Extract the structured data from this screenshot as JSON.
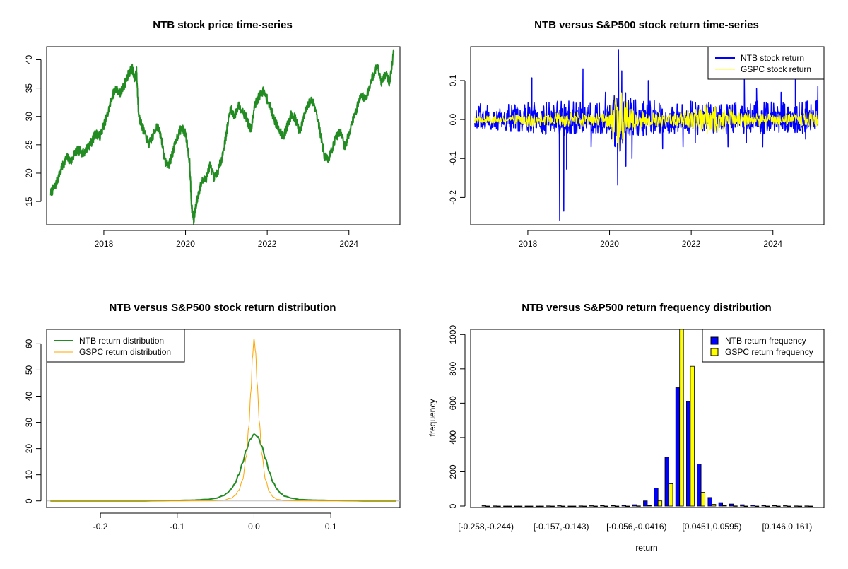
{
  "figure": {
    "colors": {
      "price_line": "#228B22",
      "ntb_return": "#0000FF",
      "gspc_return": "#FFFF00",
      "ntb_density": "#228B22",
      "gspc_density": "#FFA500",
      "ntb_bar": "#0000FF",
      "gspc_bar": "#FFFF00"
    }
  },
  "chart_data": [
    {
      "id": "price",
      "type": "line",
      "title": "NTB stock price time-series",
      "xlabel": "",
      "ylabel": "",
      "xlim": [
        2016.6,
        2025.25
      ],
      "ylim": [
        10.9,
        42.3
      ],
      "xticks": [
        2018,
        2020,
        2022,
        2024
      ],
      "yticks": [
        15,
        20,
        25,
        30,
        35,
        40
      ],
      "series": [
        {
          "name": "NTB stock price",
          "x": [
            2016.7,
            2016.8,
            2016.9,
            2017.0,
            2017.1,
            2017.2,
            2017.3,
            2017.4,
            2017.5,
            2017.6,
            2017.7,
            2017.8,
            2017.9,
            2018.0,
            2018.1,
            2018.2,
            2018.3,
            2018.4,
            2018.5,
            2018.6,
            2018.7,
            2018.75,
            2018.8,
            2018.85,
            2018.9,
            2019.0,
            2019.1,
            2019.2,
            2019.3,
            2019.4,
            2019.5,
            2019.6,
            2019.7,
            2019.8,
            2019.9,
            2020.0,
            2020.1,
            2020.15,
            2020.2,
            2020.25,
            2020.3,
            2020.4,
            2020.5,
            2020.6,
            2020.7,
            2020.8,
            2020.9,
            2021.0,
            2021.1,
            2021.2,
            2021.3,
            2021.4,
            2021.5,
            2021.6,
            2021.7,
            2021.8,
            2021.9,
            2022.0,
            2022.1,
            2022.2,
            2022.3,
            2022.4,
            2022.5,
            2022.6,
            2022.7,
            2022.8,
            2022.9,
            2023.0,
            2023.1,
            2023.2,
            2023.3,
            2023.4,
            2023.5,
            2023.6,
            2023.7,
            2023.8,
            2023.9,
            2024.0,
            2024.1,
            2024.2,
            2024.3,
            2024.4,
            2024.5,
            2024.6,
            2024.7,
            2024.8,
            2024.9,
            2025.0,
            2025.1
          ],
          "y": [
            16.5,
            17.5,
            19.5,
            21.5,
            22.8,
            22.0,
            23.8,
            24.0,
            23.5,
            24.5,
            25.5,
            27.0,
            26.5,
            28.5,
            30.5,
            33.5,
            35.0,
            34.0,
            35.5,
            37.5,
            38.5,
            36.5,
            38.0,
            30.5,
            29.0,
            27.0,
            25.0,
            26.5,
            28.5,
            26.5,
            22.0,
            21.5,
            24.0,
            26.5,
            28.0,
            27.0,
            22.0,
            14.0,
            11.8,
            14.0,
            16.0,
            18.5,
            19.0,
            21.5,
            19.0,
            20.5,
            23.0,
            27.0,
            31.5,
            30.0,
            32.0,
            31.0,
            29.5,
            27.5,
            32.0,
            33.5,
            34.5,
            33.0,
            31.0,
            29.0,
            27.5,
            26.5,
            28.5,
            30.5,
            29.5,
            27.0,
            30.0,
            32.0,
            33.0,
            31.0,
            27.0,
            23.0,
            22.5,
            24.5,
            26.5,
            27.5,
            24.5,
            27.0,
            29.5,
            31.5,
            34.0,
            33.0,
            35.0,
            37.5,
            39.0,
            36.0,
            37.5,
            36.0,
            41.5
          ]
        }
      ]
    },
    {
      "id": "returns",
      "type": "line",
      "title": "NTB versus S&P500 stock return time-series",
      "xlabel": "",
      "ylabel": "",
      "xlim": [
        2016.6,
        2025.25
      ],
      "ylim": [
        -0.27,
        0.187
      ],
      "xticks": [
        2018,
        2020,
        2022,
        2024
      ],
      "yticks": [
        -0.2,
        -0.1,
        0.0,
        0.1
      ],
      "ytick_labels": [
        "-0.2",
        "-0.1",
        "0.0",
        "0.1"
      ],
      "legend": [
        "NTB stock return",
        "GSPC stock return"
      ],
      "legend_position": "top-right",
      "series": [
        {
          "name": "NTB stock return",
          "band": [
            [
              2016.7,
              -0.035,
              0.04
            ],
            [
              2017.0,
              -0.03,
              0.045
            ],
            [
              2017.5,
              -0.03,
              0.04
            ],
            [
              2018.0,
              -0.035,
              0.045
            ],
            [
              2018.5,
              -0.04,
              0.045
            ],
            [
              2019.0,
              -0.04,
              0.05
            ],
            [
              2019.5,
              -0.035,
              0.045
            ],
            [
              2020.0,
              -0.04,
              0.05
            ],
            [
              2020.2,
              -0.09,
              0.1
            ],
            [
              2020.5,
              -0.05,
              0.055
            ],
            [
              2021.0,
              -0.04,
              0.05
            ],
            [
              2021.5,
              -0.035,
              0.045
            ],
            [
              2022.0,
              -0.04,
              0.05
            ],
            [
              2022.5,
              -0.035,
              0.045
            ],
            [
              2023.0,
              -0.04,
              0.05
            ],
            [
              2023.5,
              -0.04,
              0.05
            ],
            [
              2024.0,
              -0.035,
              0.045
            ],
            [
              2024.5,
              -0.035,
              0.045
            ],
            [
              2025.1,
              -0.04,
              0.05
            ]
          ],
          "spikes": [
            [
              2018.1,
              0.107
            ],
            [
              2018.78,
              -0.258
            ],
            [
              2018.88,
              -0.235
            ],
            [
              2018.95,
              -0.127
            ],
            [
              2019.35,
              0.13
            ],
            [
              2019.55,
              -0.07
            ],
            [
              2019.9,
              0.07
            ],
            [
              2020.2,
              -0.168
            ],
            [
              2020.22,
              0.178
            ],
            [
              2020.3,
              0.125
            ],
            [
              2020.4,
              -0.12
            ],
            [
              2020.55,
              -0.1
            ],
            [
              2020.95,
              0.1
            ],
            [
              2021.3,
              -0.075
            ],
            [
              2021.8,
              -0.07
            ],
            [
              2022.1,
              -0.06
            ],
            [
              2022.9,
              -0.07
            ],
            [
              2023.3,
              0.105
            ],
            [
              2023.35,
              -0.06
            ],
            [
              2023.6,
              0.08
            ],
            [
              2023.75,
              -0.07
            ],
            [
              2024.2,
              0.07
            ],
            [
              2024.55,
              0.11
            ],
            [
              2024.8,
              -0.05
            ],
            [
              2025.1,
              0.085
            ]
          ]
        },
        {
          "name": "GSPC stock return",
          "band": [
            [
              2016.7,
              -0.01,
              0.01
            ],
            [
              2017.5,
              -0.008,
              0.008
            ],
            [
              2018.0,
              -0.02,
              0.02
            ],
            [
              2018.5,
              -0.015,
              0.015
            ],
            [
              2019.0,
              -0.02,
              0.02
            ],
            [
              2019.5,
              -0.015,
              0.015
            ],
            [
              2020.0,
              -0.02,
              0.02
            ],
            [
              2020.2,
              -0.12,
              0.09
            ],
            [
              2020.5,
              -0.03,
              0.03
            ],
            [
              2021.0,
              -0.02,
              0.02
            ],
            [
              2021.5,
              -0.015,
              0.015
            ],
            [
              2022.0,
              -0.03,
              0.03
            ],
            [
              2022.4,
              -0.04,
              0.04
            ],
            [
              2022.8,
              -0.03,
              0.03
            ],
            [
              2023.3,
              -0.02,
              0.02
            ],
            [
              2023.8,
              -0.015,
              0.015
            ],
            [
              2024.4,
              -0.015,
              0.015
            ],
            [
              2025.1,
              -0.02,
              0.02
            ]
          ]
        }
      ]
    },
    {
      "id": "density",
      "type": "line",
      "title": "NTB versus S&P500 stock return distribution",
      "xlabel": "",
      "ylabel": "",
      "xlim": [
        -0.27,
        0.19
      ],
      "ylim": [
        -2.5,
        65.5
      ],
      "xticks": [
        -0.2,
        -0.1,
        0.0,
        0.1
      ],
      "xtick_labels": [
        "-0.2",
        "-0.1",
        "0.0",
        "0.1"
      ],
      "yticks": [
        0,
        10,
        20,
        30,
        40,
        50,
        60
      ],
      "legend": [
        "NTB return distribution",
        "GSPC return distribution"
      ],
      "legend_position": "top-left",
      "series": [
        {
          "name": "NTB return distribution",
          "x": [
            -0.265,
            -0.2,
            -0.15,
            -0.1,
            -0.08,
            -0.06,
            -0.05,
            -0.04,
            -0.035,
            -0.03,
            -0.025,
            -0.02,
            -0.015,
            -0.01,
            -0.005,
            0.0,
            0.005,
            0.01,
            0.015,
            0.02,
            0.025,
            0.03,
            0.035,
            0.04,
            0.05,
            0.06,
            0.08,
            0.1,
            0.15,
            0.185
          ],
          "y": [
            0,
            0,
            0,
            0.2,
            0.3,
            0.6,
            1.0,
            2.0,
            3.0,
            4.5,
            6.5,
            10.0,
            14.5,
            19.5,
            23.5,
            25.5,
            24.5,
            21.0,
            16.0,
            11.0,
            7.0,
            4.5,
            2.8,
            1.8,
            1.0,
            0.5,
            0.3,
            0.2,
            0,
            0
          ]
        },
        {
          "name": "GSPC return distribution",
          "x": [
            -0.265,
            -0.2,
            -0.15,
            -0.1,
            -0.06,
            -0.04,
            -0.03,
            -0.025,
            -0.02,
            -0.015,
            -0.01,
            -0.007,
            -0.004,
            -0.002,
            0.0,
            0.002,
            0.004,
            0.007,
            0.01,
            0.015,
            0.02,
            0.025,
            0.03,
            0.04,
            0.06,
            0.1,
            0.15,
            0.185
          ],
          "y": [
            0,
            0,
            0,
            0,
            0.1,
            0.3,
            1.0,
            2.0,
            4.0,
            8.0,
            17.0,
            28.0,
            42.0,
            55.0,
            62.0,
            57.0,
            45.0,
            30.0,
            18.0,
            8.0,
            3.5,
            1.5,
            0.6,
            0.2,
            0.05,
            0,
            0,
            0
          ]
        }
      ]
    },
    {
      "id": "frequency",
      "type": "bar",
      "title": "NTB versus S&P500 return frequency distribution",
      "xlabel": "return",
      "ylabel": "frequency",
      "ylim": [
        0,
        1030
      ],
      "yticks": [
        0,
        200,
        400,
        600,
        800,
        1000
      ],
      "category_labels_shown": [
        "[-0.258,-0.244)",
        "[-0.157,-0.143)",
        "[-0.056,-0.0416)",
        "[0.0451,0.0595)",
        "[0.146,0.161)"
      ],
      "category_label_bins": [
        0,
        7,
        14,
        21,
        28
      ],
      "bin_count": 31,
      "legend": [
        "NTB return frequency",
        "GSPC return frequency"
      ],
      "legend_position": "top-right",
      "series": [
        {
          "name": "NTB return frequency",
          "values": [
            2,
            1,
            0,
            0,
            0,
            0,
            1,
            2,
            0,
            1,
            2,
            3,
            3,
            5,
            8,
            30,
            105,
            285,
            690,
            610,
            245,
            50,
            20,
            12,
            8,
            6,
            4,
            3,
            2,
            1,
            1
          ]
        },
        {
          "name": "GSPC return frequency",
          "values": [
            0,
            0,
            0,
            0,
            0,
            0,
            0,
            0,
            0,
            0,
            0,
            0,
            0,
            0,
            1,
            3,
            30,
            130,
            1030,
            815,
            80,
            10,
            3,
            1,
            0,
            0,
            0,
            0,
            0,
            0,
            0
          ]
        }
      ]
    }
  ]
}
